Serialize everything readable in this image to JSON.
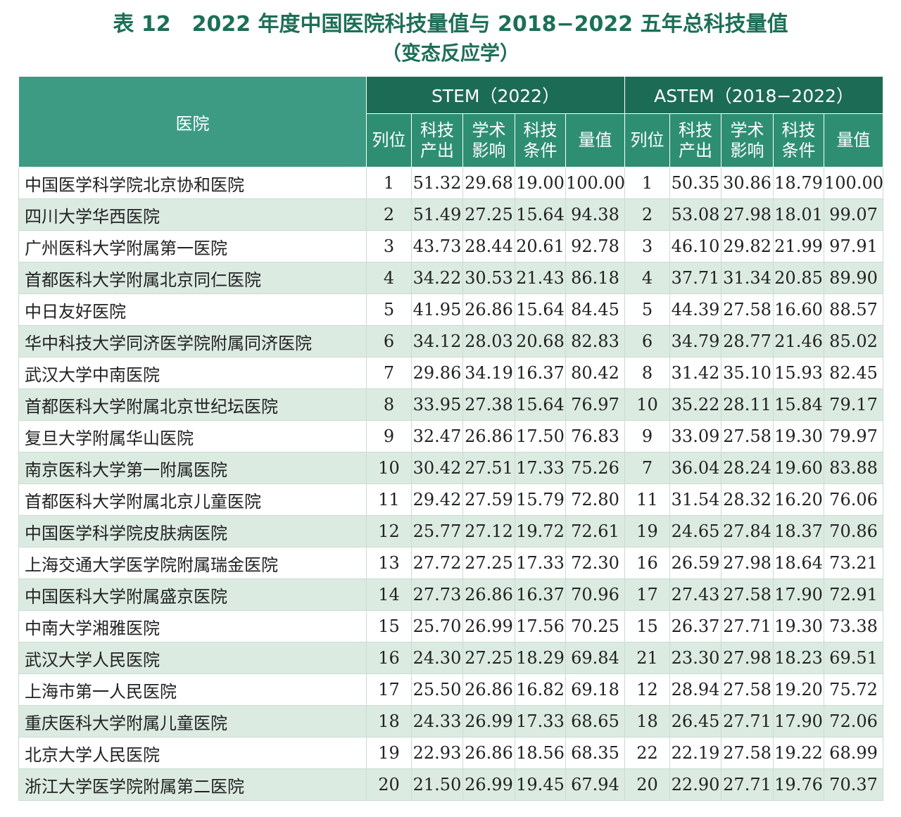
{
  "title": {
    "line1": "表 12　2022 年度中国医院科技量值与 2018−2022 五年总科技量值",
    "line2": "（变态反应学）"
  },
  "header": {
    "hospital": "医院",
    "group1": "STEM（2022）",
    "group2": "ASTEM（2018−2022）",
    "columns": [
      [
        "列位"
      ],
      [
        "科技",
        "产出"
      ],
      [
        "学术",
        "影响"
      ],
      [
        "科技",
        "条件"
      ],
      [
        "量值"
      ],
      [
        "列位"
      ],
      [
        "科技",
        "产出"
      ],
      [
        "学术",
        "影响"
      ],
      [
        "科技",
        "条件"
      ],
      [
        "量值"
      ]
    ]
  },
  "rows": [
    [
      "中国医学科学院北京协和医院",
      "1",
      "51.32",
      "29.68",
      "19.00",
      "100.00",
      "1",
      "50.35",
      "30.86",
      "18.79",
      "100.00"
    ],
    [
      "四川大学华西医院",
      "2",
      "51.49",
      "27.25",
      "15.64",
      "94.38",
      "2",
      "53.08",
      "27.98",
      "18.01",
      "99.07"
    ],
    [
      "广州医科大学附属第一医院",
      "3",
      "43.73",
      "28.44",
      "20.61",
      "92.78",
      "3",
      "46.10",
      "29.82",
      "21.99",
      "97.91"
    ],
    [
      "首都医科大学附属北京同仁医院",
      "4",
      "34.22",
      "30.53",
      "21.43",
      "86.18",
      "4",
      "37.71",
      "31.34",
      "20.85",
      "89.90"
    ],
    [
      "中日友好医院",
      "5",
      "41.95",
      "26.86",
      "15.64",
      "84.45",
      "5",
      "44.39",
      "27.58",
      "16.60",
      "88.57"
    ],
    [
      "华中科技大学同济医学院附属同济医院",
      "6",
      "34.12",
      "28.03",
      "20.68",
      "82.83",
      "6",
      "34.79",
      "28.77",
      "21.46",
      "85.02"
    ],
    [
      "武汉大学中南医院",
      "7",
      "29.86",
      "34.19",
      "16.37",
      "80.42",
      "8",
      "31.42",
      "35.10",
      "15.93",
      "82.45"
    ],
    [
      "首都医科大学附属北京世纪坛医院",
      "8",
      "33.95",
      "27.38",
      "15.64",
      "76.97",
      "10",
      "35.22",
      "28.11",
      "15.84",
      "79.17"
    ],
    [
      "复旦大学附属华山医院",
      "9",
      "32.47",
      "26.86",
      "17.50",
      "76.83",
      "9",
      "33.09",
      "27.58",
      "19.30",
      "79.97"
    ],
    [
      "南京医科大学第一附属医院",
      "10",
      "30.42",
      "27.51",
      "17.33",
      "75.26",
      "7",
      "36.04",
      "28.24",
      "19.60",
      "83.88"
    ],
    [
      "首都医科大学附属北京儿童医院",
      "11",
      "29.42",
      "27.59",
      "15.79",
      "72.80",
      "11",
      "31.54",
      "28.32",
      "16.20",
      "76.06"
    ],
    [
      "中国医学科学院皮肤病医院",
      "12",
      "25.77",
      "27.12",
      "19.72",
      "72.61",
      "19",
      "24.65",
      "27.84",
      "18.37",
      "70.86"
    ],
    [
      "上海交通大学医学院附属瑞金医院",
      "13",
      "27.72",
      "27.25",
      "17.33",
      "72.30",
      "16",
      "26.59",
      "27.98",
      "18.64",
      "73.21"
    ],
    [
      "中国医科大学附属盛京医院",
      "14",
      "27.73",
      "26.86",
      "16.37",
      "70.96",
      "17",
      "27.43",
      "27.58",
      "17.90",
      "72.91"
    ],
    [
      "中南大学湘雅医院",
      "15",
      "25.70",
      "26.99",
      "17.56",
      "70.25",
      "15",
      "26.37",
      "27.71",
      "19.30",
      "73.38"
    ],
    [
      "武汉大学人民医院",
      "16",
      "24.30",
      "27.25",
      "18.29",
      "69.84",
      "21",
      "23.30",
      "27.98",
      "18.23",
      "69.51"
    ],
    [
      "上海市第一人民医院",
      "17",
      "25.50",
      "26.86",
      "16.82",
      "69.18",
      "12",
      "28.94",
      "27.58",
      "19.20",
      "75.72"
    ],
    [
      "重庆医科大学附属儿童医院",
      "18",
      "24.33",
      "26.99",
      "17.33",
      "68.65",
      "18",
      "26.45",
      "27.71",
      "17.90",
      "72.06"
    ],
    [
      "北京大学人民医院",
      "19",
      "22.93",
      "26.86",
      "18.56",
      "68.35",
      "22",
      "22.19",
      "27.58",
      "19.22",
      "68.99"
    ],
    [
      "浙江大学医学院附属第二医院",
      "20",
      "21.50",
      "26.99",
      "19.45",
      "67.94",
      "20",
      "22.90",
      "27.71",
      "19.76",
      "70.37"
    ]
  ]
}
